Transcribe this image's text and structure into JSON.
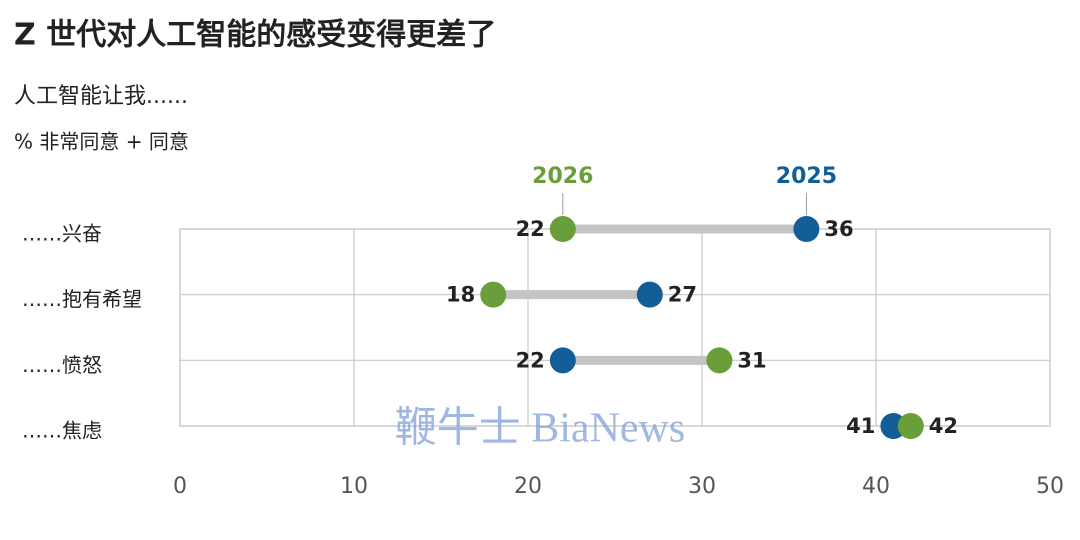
{
  "chart_data": {
    "type": "dumbbell",
    "title": "Z 世代对人工智能的感受变得更差了",
    "subtitle": "人工智能让我......",
    "axis_note": "% 非常同意 + 同意",
    "watermark": "鞭牛士 BiaNews",
    "categories": [
      "……兴奋",
      "……抱有希望",
      "……愤怒",
      "……焦虑"
    ],
    "series": [
      {
        "name": "2026",
        "color": "#6a9e3a",
        "values": [
          22,
          18,
          31,
          42
        ]
      },
      {
        "name": "2025",
        "color": "#135e96",
        "values": [
          36,
          27,
          22,
          41
        ]
      }
    ],
    "xlim": [
      0,
      50
    ],
    "xticks": [
      0,
      10,
      20,
      30,
      40,
      50
    ],
    "grid": true
  }
}
